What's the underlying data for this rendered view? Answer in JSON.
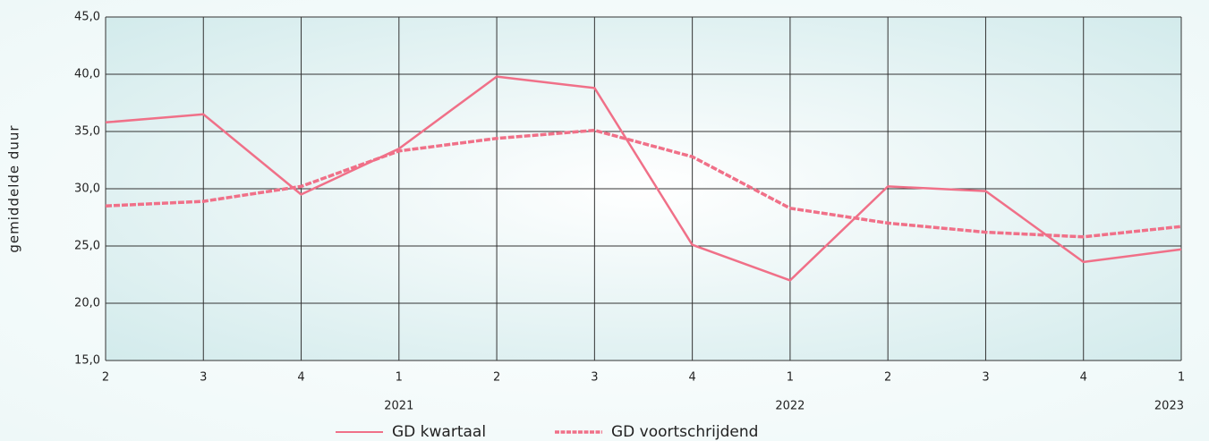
{
  "chart_data": {
    "type": "line",
    "y_label": "gemiddelde duur",
    "categories": [
      "2",
      "3",
      "4",
      "1",
      "2",
      "3",
      "4",
      "1",
      "2",
      "3",
      "4",
      "1"
    ],
    "year_labels": [
      null,
      null,
      null,
      "2021",
      null,
      null,
      null,
      "2022",
      null,
      null,
      null,
      "2023"
    ],
    "series": [
      {
        "name": "GD kwartaal",
        "color": "#f07088",
        "dashed": false,
        "values": [
          35.8,
          36.5,
          29.5,
          33.5,
          39.8,
          38.8,
          25.1,
          22.0,
          30.2,
          29.8,
          23.6,
          24.7
        ]
      },
      {
        "name": "GD voortschrijdend",
        "color": "#f07088",
        "dashed": true,
        "values": [
          28.5,
          28.9,
          30.2,
          33.3,
          34.4,
          35.1,
          32.8,
          28.3,
          27.0,
          26.2,
          25.8,
          26.7
        ]
      }
    ],
    "ylim": [
      15,
      45
    ],
    "yticks": [
      {
        "value": 15,
        "label": "15,0"
      },
      {
        "value": 20,
        "label": "20,0"
      },
      {
        "value": 25,
        "label": "25,0"
      },
      {
        "value": 30,
        "label": "30,0"
      },
      {
        "value": 35,
        "label": "35,0"
      },
      {
        "value": 40,
        "label": "40,0"
      },
      {
        "value": 45,
        "label": "45,0"
      }
    ],
    "grid": true
  }
}
